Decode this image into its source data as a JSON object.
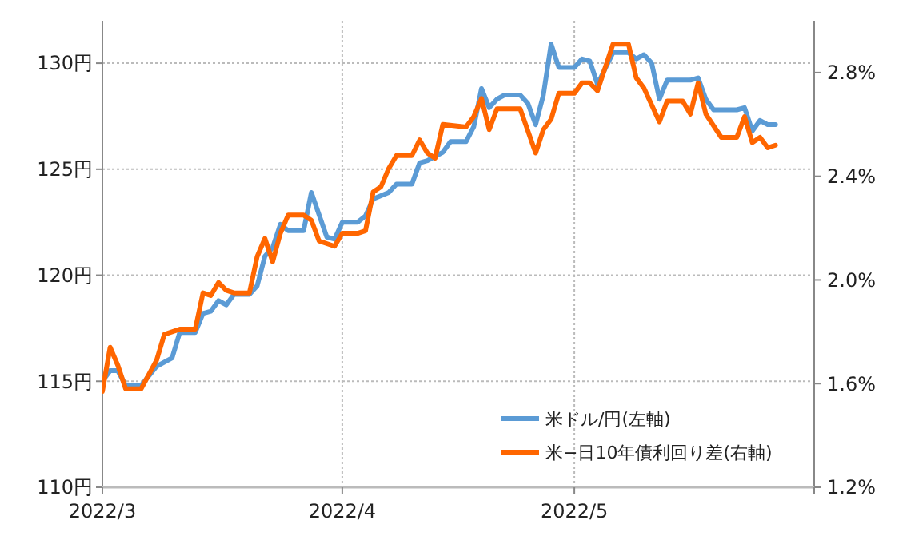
{
  "chart_data": {
    "type": "line",
    "xlim": [
      "2022-03-01",
      "2022-06-01"
    ],
    "xticks": [
      {
        "value": "2022-03-01",
        "label": "2022/3"
      },
      {
        "value": "2022-04-01",
        "label": "2022/4"
      },
      {
        "value": "2022-05-01",
        "label": "2022/5"
      }
    ],
    "ylim": [
      110,
      132
    ],
    "yticks": [
      {
        "value": 110,
        "label": "110円"
      },
      {
        "value": 115,
        "label": "115円"
      },
      {
        "value": 120,
        "label": "120円"
      },
      {
        "value": 125,
        "label": "125円"
      },
      {
        "value": 130,
        "label": "130円"
      }
    ],
    "y2lim": [
      1.2,
      3.0
    ],
    "y2ticks": [
      {
        "value": 1.2,
        "label": "1.2%"
      },
      {
        "value": 1.6,
        "label": "1.6%"
      },
      {
        "value": 2.0,
        "label": "2.0%"
      },
      {
        "value": 2.4,
        "label": "2.4%"
      },
      {
        "value": 2.8,
        "label": "2.8%"
      }
    ],
    "grid": true,
    "legend": "bottom right",
    "line_style": "solid",
    "marker": "none",
    "series": [
      {
        "name": "米ドル/円(左軸)",
        "color": "#5b9bd5",
        "x": [
          "2022-03-01",
          "2022-03-02",
          "2022-03-03",
          "2022-03-04",
          "2022-03-06",
          "2022-03-08",
          "2022-03-10",
          "2022-03-11",
          "2022-03-13",
          "2022-03-14",
          "2022-03-15",
          "2022-03-16",
          "2022-03-17",
          "2022-03-18",
          "2022-03-20",
          "2022-03-21",
          "2022-03-22",
          "2022-03-23",
          "2022-03-24",
          "2022-03-25",
          "2022-03-27",
          "2022-03-28",
          "2022-03-30",
          "2022-03-31",
          "2022-04-01",
          "2022-04-03",
          "2022-04-04",
          "2022-04-05",
          "2022-04-07",
          "2022-04-08",
          "2022-04-10",
          "2022-04-11",
          "2022-04-12",
          "2022-04-14",
          "2022-04-15",
          "2022-04-17",
          "2022-04-18",
          "2022-04-19",
          "2022-04-20",
          "2022-04-21",
          "2022-04-22",
          "2022-04-24",
          "2022-04-25",
          "2022-04-26",
          "2022-04-27",
          "2022-04-28",
          "2022-04-29",
          "2022-05-01",
          "2022-05-02",
          "2022-05-03",
          "2022-05-04",
          "2022-05-06",
          "2022-05-08",
          "2022-05-09",
          "2022-05-10",
          "2022-05-11",
          "2022-05-12",
          "2022-05-13",
          "2022-05-16",
          "2022-05-17",
          "2022-05-18",
          "2022-05-19",
          "2022-05-22",
          "2022-05-23",
          "2022-05-24",
          "2022-05-25",
          "2022-05-26",
          "2022-05-27"
        ],
        "values": [
          115.0,
          115.5,
          115.5,
          114.8,
          114.8,
          115.7,
          116.1,
          117.3,
          117.3,
          118.2,
          118.3,
          118.8,
          118.6,
          119.1,
          119.1,
          119.5,
          120.9,
          121.3,
          122.4,
          122.1,
          122.1,
          123.9,
          121.8,
          121.7,
          122.5,
          122.5,
          122.8,
          123.6,
          123.9,
          124.3,
          124.3,
          125.3,
          125.4,
          125.8,
          126.3,
          126.3,
          127.0,
          128.8,
          127.9,
          128.3,
          128.5,
          128.5,
          128.1,
          127.1,
          128.5,
          130.9,
          129.8,
          129.8,
          130.2,
          130.1,
          129.0,
          130.5,
          130.5,
          130.2,
          130.4,
          130.0,
          128.3,
          129.2,
          129.2,
          129.3,
          128.3,
          127.8,
          127.8,
          127.9,
          126.8,
          127.3,
          127.1,
          127.1
        ]
      },
      {
        "name": "米−日10年債利回り差(右軸)",
        "color": "#ff6600",
        "axis": "y2",
        "x": [
          "2022-03-01",
          "2022-03-02",
          "2022-03-03",
          "2022-03-04",
          "2022-03-06",
          "2022-03-08",
          "2022-03-09",
          "2022-03-10",
          "2022-03-11",
          "2022-03-13",
          "2022-03-14",
          "2022-03-15",
          "2022-03-16",
          "2022-03-17",
          "2022-03-18",
          "2022-03-20",
          "2022-03-21",
          "2022-03-22",
          "2022-03-23",
          "2022-03-24",
          "2022-03-25",
          "2022-03-27",
          "2022-03-28",
          "2022-03-29",
          "2022-03-31",
          "2022-04-01",
          "2022-04-03",
          "2022-04-04",
          "2022-04-05",
          "2022-04-06",
          "2022-04-07",
          "2022-04-08",
          "2022-04-10",
          "2022-04-11",
          "2022-04-12",
          "2022-04-13",
          "2022-04-14",
          "2022-04-17",
          "2022-04-18",
          "2022-04-19",
          "2022-04-20",
          "2022-04-21",
          "2022-04-24",
          "2022-04-26",
          "2022-04-27",
          "2022-04-28",
          "2022-04-29",
          "2022-05-01",
          "2022-05-02",
          "2022-05-03",
          "2022-05-04",
          "2022-05-06",
          "2022-05-08",
          "2022-05-09",
          "2022-05-10",
          "2022-05-12",
          "2022-05-13",
          "2022-05-15",
          "2022-05-16",
          "2022-05-17",
          "2022-05-18",
          "2022-05-20",
          "2022-05-22",
          "2022-05-23",
          "2022-05-24",
          "2022-05-25",
          "2022-05-26",
          "2022-05-27"
        ],
        "values": [
          1.57,
          1.74,
          1.67,
          1.58,
          1.58,
          1.69,
          1.79,
          1.8,
          1.81,
          1.81,
          1.95,
          1.94,
          1.99,
          1.96,
          1.95,
          1.95,
          2.09,
          2.16,
          2.07,
          2.18,
          2.25,
          2.25,
          2.23,
          2.15,
          2.13,
          2.18,
          2.18,
          2.19,
          2.34,
          2.36,
          2.43,
          2.48,
          2.48,
          2.54,
          2.49,
          2.47,
          2.6,
          2.59,
          2.63,
          2.7,
          2.58,
          2.66,
          2.66,
          2.49,
          2.58,
          2.62,
          2.72,
          2.72,
          2.76,
          2.76,
          2.73,
          2.91,
          2.91,
          2.78,
          2.74,
          2.61,
          2.69,
          2.69,
          2.64,
          2.76,
          2.64,
          2.55,
          2.55,
          2.63,
          2.53,
          2.55,
          2.51,
          2.52
        ]
      }
    ]
  }
}
